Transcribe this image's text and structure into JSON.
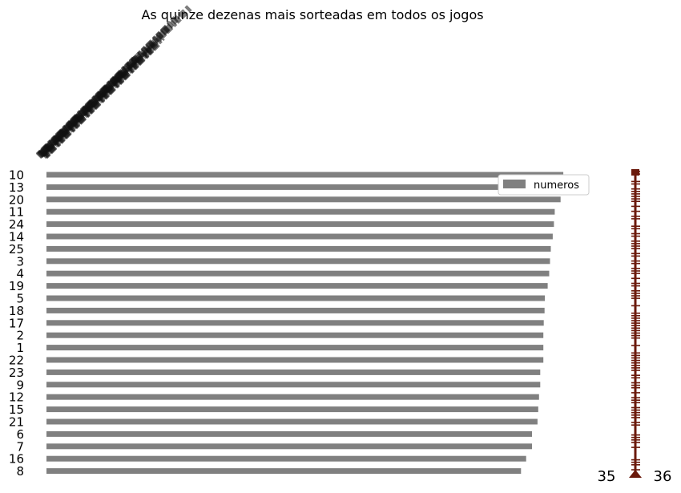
{
  "chart_data": {
    "type": "bar",
    "orientation": "horizontal",
    "title": "As quinze dezenas mais sorteadas em todos os jogos",
    "categories": [
      "10",
      "13",
      "20",
      "11",
      "24",
      "14",
      "25",
      "3",
      "4",
      "19",
      "5",
      "18",
      "17",
      "2",
      "1",
      "22",
      "23",
      "9",
      "12",
      "15",
      "21",
      "6",
      "7",
      "16",
      "8"
    ],
    "series": [
      {
        "name": "numeros",
        "color": "#808080",
        "values": [
          1320,
          1319,
          1313,
          1298,
          1296,
          1293,
          1288,
          1286,
          1284,
          1280,
          1273,
          1272,
          1270,
          1269,
          1269,
          1269,
          1261,
          1261,
          1258,
          1256,
          1254,
          1240,
          1240,
          1225,
          1212
        ]
      }
    ],
    "xlim": [
      0,
      1330
    ],
    "legend": "top-right",
    "grid": false,
    "bar_color": "#808080",
    "rug_color": "#6b1a0c",
    "rug_ticks": [
      "35",
      "36"
    ]
  }
}
